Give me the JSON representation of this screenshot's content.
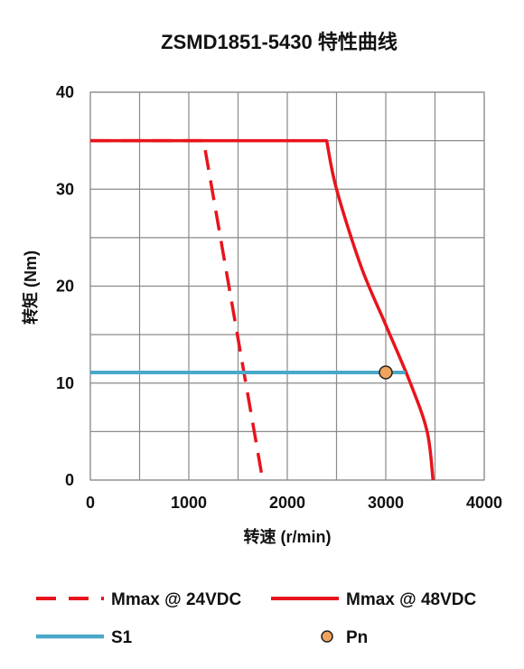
{
  "chart_data": {
    "type": "line",
    "title": "ZSMD1851-5430 特性曲线",
    "xlabel": "转速 (r/min)",
    "ylabel": "转矩 (Nm)",
    "xlim": [
      0,
      4000
    ],
    "ylim": [
      0,
      40
    ],
    "xticks": [
      0,
      1000,
      2000,
      3000,
      4000
    ],
    "yticks": [
      0,
      10,
      20,
      30,
      40
    ],
    "x_gridlines": [
      0,
      500,
      1000,
      1500,
      2000,
      2500,
      3000,
      3500,
      4000
    ],
    "y_gridlines": [
      0,
      5,
      10,
      15,
      20,
      25,
      30,
      35,
      40
    ],
    "grid": true,
    "legend_position": "bottom",
    "series": [
      {
        "name": "Mmax @ 24VDC",
        "style": "dashed",
        "color": "#e8141c",
        "points": [
          [
            0,
            35
          ],
          [
            1150,
            35
          ],
          [
            1750,
            0
          ]
        ]
      },
      {
        "name": "Mmax @ 48VDC",
        "style": "solid",
        "color": "#e8141c",
        "points": [
          [
            0,
            35
          ],
          [
            2400,
            35
          ],
          [
            2500,
            30
          ],
          [
            2750,
            22
          ],
          [
            3000,
            16
          ],
          [
            3250,
            10
          ],
          [
            3420,
            5
          ],
          [
            3480,
            0
          ]
        ]
      },
      {
        "name": "S1",
        "style": "solid",
        "color": "#4aa8c8",
        "points": [
          [
            0,
            11.1
          ],
          [
            3200,
            11.1
          ]
        ]
      },
      {
        "name": "Pn",
        "style": "marker",
        "color": "#f0a35e",
        "points": [
          [
            3000,
            11.1
          ]
        ]
      }
    ]
  }
}
